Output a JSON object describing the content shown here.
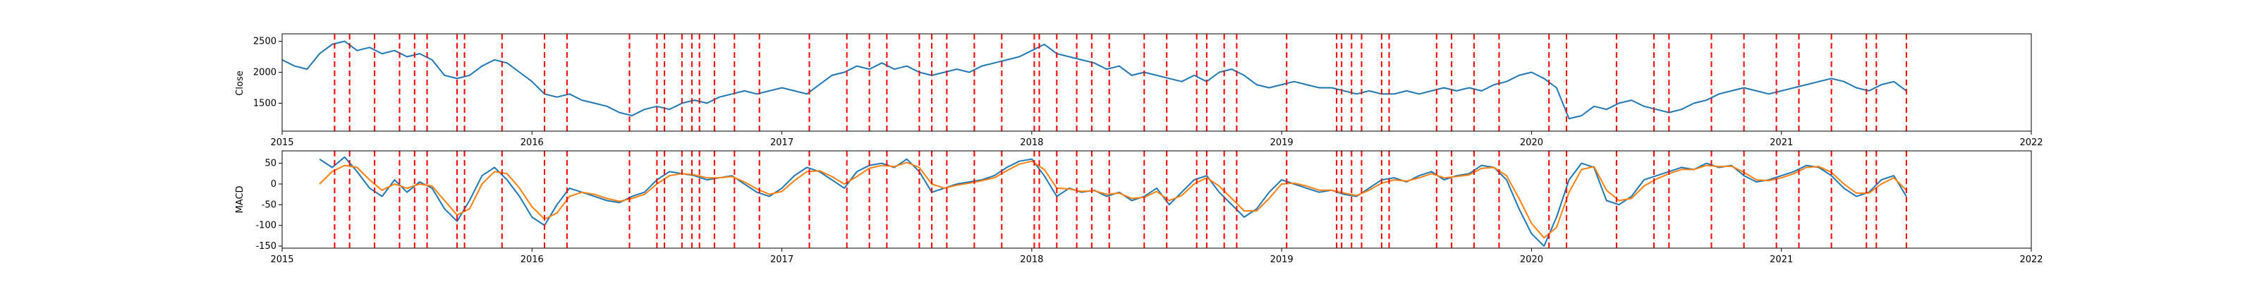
{
  "colors": {
    "close": "#1f77b4",
    "macd": "#1f77b4",
    "signal": "#ff7f0e",
    "event_lines": "#ff0000",
    "axes": "#000000"
  },
  "chart_data": [
    {
      "type": "line",
      "ylabel": "Close",
      "xlim": [
        2015.0,
        2022.0
      ],
      "ylim": [
        1050,
        2620
      ],
      "yticks": [
        1500,
        2000,
        2500
      ],
      "xticks": [
        2015,
        2016,
        2017,
        2018,
        2019,
        2020,
        2021,
        2022
      ],
      "grid": false,
      "series": [
        {
          "x": [
            2015.0,
            2015.05,
            2015.1,
            2015.15,
            2015.2,
            2015.25,
            2015.3,
            2015.35,
            2015.4,
            2015.45,
            2015.5,
            2015.55,
            2015.6,
            2015.65,
            2015.7,
            2015.75,
            2015.8,
            2015.85,
            2015.9,
            2015.95,
            2016.0,
            2016.05,
            2016.1,
            2016.15,
            2016.2,
            2016.25,
            2016.3,
            2016.35,
            2016.4,
            2016.45,
            2016.5,
            2016.55,
            2016.6,
            2016.65,
            2016.7,
            2016.75,
            2016.8,
            2016.85,
            2016.9,
            2016.95,
            2017.0,
            2017.05,
            2017.1,
            2017.15,
            2017.2,
            2017.25,
            2017.3,
            2017.35,
            2017.4,
            2017.45,
            2017.5,
            2017.55,
            2017.6,
            2017.65,
            2017.7,
            2017.75,
            2017.8,
            2017.85,
            2017.9,
            2017.95,
            2018.0,
            2018.05,
            2018.1,
            2018.15,
            2018.2,
            2018.25,
            2018.3,
            2018.35,
            2018.4,
            2018.45,
            2018.5,
            2018.55,
            2018.6,
            2018.65,
            2018.7,
            2018.75,
            2018.8,
            2018.85,
            2018.9,
            2018.95,
            2019.0,
            2019.05,
            2019.1,
            2019.15,
            2019.2,
            2019.25,
            2019.3,
            2019.35,
            2019.4,
            2019.45,
            2019.5,
            2019.55,
            2019.6,
            2019.65,
            2019.7,
            2019.75,
            2019.8,
            2019.85,
            2019.9,
            2019.95,
            2020.0,
            2020.05,
            2020.1,
            2020.15,
            2020.2,
            2020.25,
            2020.3,
            2020.35,
            2020.4,
            2020.45,
            2020.5,
            2020.55,
            2020.6,
            2020.65,
            2020.7,
            2020.75,
            2020.8,
            2020.85,
            2020.9,
            2020.95,
            2021.0,
            2021.05,
            2021.1,
            2021.15,
            2021.2,
            2021.25,
            2021.3,
            2021.35,
            2021.4,
            2021.45,
            2021.5
          ],
          "y": [
            2200,
            2100,
            2050,
            2300,
            2450,
            2500,
            2350,
            2400,
            2300,
            2350,
            2250,
            2300,
            2200,
            1950,
            1900,
            1950,
            2100,
            2200,
            2150,
            2000,
            1850,
            1650,
            1600,
            1650,
            1550,
            1500,
            1450,
            1350,
            1300,
            1400,
            1450,
            1400,
            1500,
            1550,
            1500,
            1600,
            1650,
            1700,
            1650,
            1700,
            1750,
            1700,
            1650,
            1800,
            1950,
            2000,
            2100,
            2050,
            2150,
            2050,
            2100,
            2000,
            1950,
            2000,
            2050,
            2000,
            2100,
            2150,
            2200,
            2250,
            2350,
            2450,
            2300,
            2250,
            2200,
            2150,
            2050,
            2100,
            1950,
            2000,
            1950,
            1900,
            1850,
            1950,
            1850,
            2000,
            2050,
            1950,
            1800,
            1750,
            1800,
            1850,
            1800,
            1750,
            1750,
            1700,
            1650,
            1700,
            1650,
            1650,
            1700,
            1650,
            1700,
            1750,
            1700,
            1750,
            1700,
            1800,
            1850,
            1950,
            2000,
            1900,
            1750,
            1250,
            1300,
            1450,
            1400,
            1500,
            1550,
            1450,
            1400,
            1350,
            1400,
            1500,
            1550,
            1650,
            1700,
            1750,
            1700,
            1650,
            1700,
            1750,
            1800,
            1850,
            1900,
            1850,
            1750,
            1700,
            1800,
            1850,
            1700
          ]
        }
      ]
    },
    {
      "type": "line",
      "ylabel": "MACD",
      "xlim": [
        2015.0,
        2022.0
      ],
      "ylim": [
        -155,
        80
      ],
      "yticks": [
        -150,
        -100,
        -50,
        0,
        50
      ],
      "xticks": [
        2015,
        2016,
        2017,
        2018,
        2019,
        2020,
        2021,
        2022
      ],
      "grid": false,
      "series": [
        {
          "x": [
            2015.15,
            2015.2,
            2015.25,
            2015.3,
            2015.35,
            2015.4,
            2015.45,
            2015.5,
            2015.55,
            2015.6,
            2015.65,
            2015.7,
            2015.75,
            2015.8,
            2015.85,
            2015.9,
            2015.95,
            2016.0,
            2016.05,
            2016.1,
            2016.15,
            2016.2,
            2016.25,
            2016.3,
            2016.35,
            2016.4,
            2016.45,
            2016.5,
            2016.55,
            2016.6,
            2016.65,
            2016.7,
            2016.75,
            2016.8,
            2016.85,
            2016.9,
            2016.95,
            2017.0,
            2017.05,
            2017.1,
            2017.15,
            2017.2,
            2017.25,
            2017.3,
            2017.35,
            2017.4,
            2017.45,
            2017.5,
            2017.55,
            2017.6,
            2017.65,
            2017.7,
            2017.75,
            2017.8,
            2017.85,
            2017.9,
            2017.95,
            2018.0,
            2018.05,
            2018.1,
            2018.15,
            2018.2,
            2018.25,
            2018.3,
            2018.35,
            2018.4,
            2018.45,
            2018.5,
            2018.55,
            2018.6,
            2018.65,
            2018.7,
            2018.75,
            2018.8,
            2018.85,
            2018.9,
            2018.95,
            2019.0,
            2019.05,
            2019.1,
            2019.15,
            2019.2,
            2019.25,
            2019.3,
            2019.35,
            2019.4,
            2019.45,
            2019.5,
            2019.55,
            2019.6,
            2019.65,
            2019.7,
            2019.75,
            2019.8,
            2019.85,
            2019.9,
            2019.95,
            2020.0,
            2020.05,
            2020.1,
            2020.15,
            2020.2,
            2020.25,
            2020.3,
            2020.35,
            2020.4,
            2020.45,
            2020.5,
            2020.55,
            2020.6,
            2020.65,
            2020.7,
            2020.75,
            2020.8,
            2020.85,
            2020.9,
            2020.95,
            2021.0,
            2021.05,
            2021.1,
            2021.15,
            2021.2,
            2021.25,
            2021.3,
            2021.35,
            2021.4,
            2021.45,
            2021.5
          ],
          "y": [
            60,
            40,
            65,
            30,
            -10,
            -30,
            10,
            -20,
            5,
            -10,
            -60,
            -90,
            -40,
            20,
            40,
            10,
            -30,
            -80,
            -100,
            -50,
            -10,
            -20,
            -30,
            -40,
            -45,
            -30,
            -20,
            10,
            30,
            25,
            20,
            10,
            15,
            20,
            0,
            -20,
            -30,
            -10,
            20,
            40,
            30,
            10,
            -10,
            30,
            45,
            50,
            40,
            60,
            30,
            -20,
            -10,
            0,
            5,
            10,
            20,
            40,
            55,
            60,
            20,
            -30,
            -10,
            -20,
            -15,
            -30,
            -20,
            -40,
            -30,
            -10,
            -50,
            -20,
            10,
            20,
            -20,
            -50,
            -80,
            -60,
            -20,
            10,
            0,
            -10,
            -20,
            -15,
            -25,
            -30,
            -10,
            10,
            15,
            5,
            20,
            30,
            10,
            20,
            25,
            45,
            40,
            10,
            -60,
            -120,
            -150,
            -80,
            10,
            50,
            40,
            -40,
            -50,
            -30,
            10,
            20,
            30,
            40,
            35,
            50,
            40,
            45,
            20,
            5,
            10,
            20,
            30,
            45,
            40,
            20,
            -10,
            -30,
            -20,
            10,
            20,
            -30
          ]
        },
        {
          "x": [
            2015.15,
            2015.2,
            2015.25,
            2015.3,
            2015.35,
            2015.4,
            2015.45,
            2015.5,
            2015.55,
            2015.6,
            2015.65,
            2015.7,
            2015.75,
            2015.8,
            2015.85,
            2015.9,
            2015.95,
            2016.0,
            2016.05,
            2016.1,
            2016.15,
            2016.2,
            2016.25,
            2016.3,
            2016.35,
            2016.4,
            2016.45,
            2016.5,
            2016.55,
            2016.6,
            2016.65,
            2016.7,
            2016.75,
            2016.8,
            2016.85,
            2016.9,
            2016.95,
            2017.0,
            2017.05,
            2017.1,
            2017.15,
            2017.2,
            2017.25,
            2017.3,
            2017.35,
            2017.4,
            2017.45,
            2017.5,
            2017.55,
            2017.6,
            2017.65,
            2017.7,
            2017.75,
            2017.8,
            2017.85,
            2017.9,
            2017.95,
            2018.0,
            2018.05,
            2018.1,
            2018.15,
            2018.2,
            2018.25,
            2018.3,
            2018.35,
            2018.4,
            2018.45,
            2018.5,
            2018.55,
            2018.6,
            2018.65,
            2018.7,
            2018.75,
            2018.8,
            2018.85,
            2018.9,
            2018.95,
            2019.0,
            2019.05,
            2019.1,
            2019.15,
            2019.2,
            2019.25,
            2019.3,
            2019.35,
            2019.4,
            2019.45,
            2019.5,
            2019.55,
            2019.6,
            2019.65,
            2019.7,
            2019.75,
            2019.8,
            2019.85,
            2019.9,
            2019.95,
            2020.0,
            2020.05,
            2020.1,
            2020.15,
            2020.2,
            2020.25,
            2020.3,
            2020.35,
            2020.4,
            2020.45,
            2020.5,
            2020.55,
            2020.6,
            2020.65,
            2020.7,
            2020.75,
            2020.8,
            2020.85,
            2020.9,
            2020.95,
            2021.0,
            2021.05,
            2021.1,
            2021.15,
            2021.2,
            2021.25,
            2021.3,
            2021.35,
            2021.4,
            2021.45,
            2021.5
          ],
          "y": [
            0,
            30,
            45,
            40,
            10,
            -15,
            0,
            -10,
            0,
            -5,
            -40,
            -75,
            -60,
            0,
            30,
            25,
            -10,
            -55,
            -85,
            -70,
            -30,
            -20,
            -25,
            -35,
            -42,
            -35,
            -25,
            0,
            20,
            25,
            22,
            15,
            15,
            18,
            5,
            -12,
            -25,
            -18,
            8,
            30,
            32,
            18,
            0,
            18,
            38,
            45,
            42,
            52,
            40,
            0,
            -10,
            -3,
            2,
            8,
            15,
            32,
            48,
            55,
            35,
            -10,
            -12,
            -18,
            -16,
            -25,
            -22,
            -35,
            -32,
            -18,
            -40,
            -28,
            0,
            15,
            -5,
            -35,
            -65,
            -65,
            -35,
            0,
            2,
            -5,
            -15,
            -15,
            -22,
            -28,
            -15,
            2,
            10,
            7,
            15,
            25,
            15,
            18,
            22,
            38,
            40,
            20,
            -35,
            -95,
            -130,
            -105,
            -20,
            35,
            42,
            -15,
            -40,
            -35,
            -5,
            12,
            25,
            35,
            35,
            45,
            42,
            43,
            28,
            10,
            8,
            15,
            25,
            40,
            42,
            28,
            0,
            -22,
            -22,
            0,
            15,
            -15
          ]
        }
      ]
    }
  ],
  "event_dates": [
    2015.21,
    2015.27,
    2015.37,
    2015.47,
    2015.53,
    2015.58,
    2015.7,
    2015.73,
    2015.88,
    2016.05,
    2016.14,
    2016.39,
    2016.5,
    2016.53,
    2016.6,
    2016.64,
    2016.67,
    2016.73,
    2016.81,
    2016.91,
    2017.11,
    2017.26,
    2017.35,
    2017.42,
    2017.55,
    2017.6,
    2017.66,
    2017.77,
    2017.88,
    2018.01,
    2018.03,
    2018.1,
    2018.18,
    2018.24,
    2018.31,
    2018.45,
    2018.54,
    2018.66,
    2018.7,
    2018.77,
    2018.82,
    2019.02,
    2019.22,
    2019.24,
    2019.28,
    2019.32,
    2019.4,
    2019.43,
    2019.62,
    2019.68,
    2019.77,
    2019.87,
    2020.07,
    2020.14,
    2020.34,
    2020.49,
    2020.55,
    2020.72,
    2020.85,
    2020.98,
    2021.07,
    2021.2,
    2021.34,
    2021.38,
    2021.5
  ]
}
